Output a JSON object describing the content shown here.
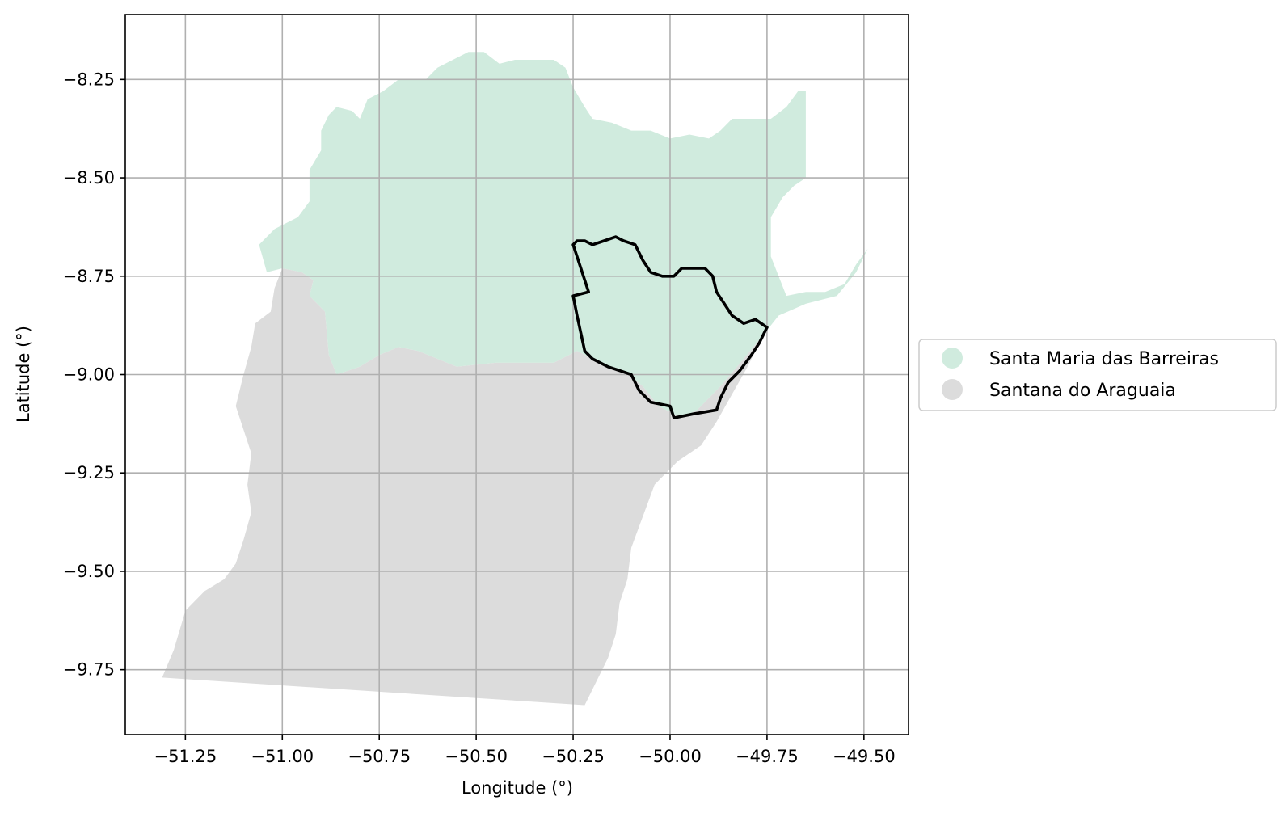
{
  "chart_data": {
    "type": "map",
    "xlabel": "Longitude (°)",
    "ylabel": "Latitude (°)",
    "xlim": [
      -51.405,
      -49.385
    ],
    "ylim": [
      -9.915,
      -8.085
    ],
    "grid": true,
    "x_ticks": [
      -51.25,
      -51.0,
      -50.75,
      -50.5,
      -50.25,
      -50.0,
      -49.75,
      -49.5
    ],
    "x_tick_labels": [
      "−51.25",
      "−51.00",
      "−50.75",
      "−50.50",
      "−50.25",
      "−50.00",
      "−49.75",
      "−49.50"
    ],
    "y_ticks": [
      -8.25,
      -8.5,
      -8.75,
      -9.0,
      -9.25,
      -9.5,
      -9.75
    ],
    "y_tick_labels": [
      "−8.25",
      "−8.50",
      "−8.75",
      "−9.00",
      "−9.25",
      "−9.50",
      "−9.75"
    ],
    "legend_placement": "center-right-outside",
    "series": [
      {
        "name": "Santa Maria das Barreiras",
        "color": "#d0ebde",
        "polygon": [
          [
            -51.06,
            -8.67
          ],
          [
            -51.02,
            -8.63
          ],
          [
            -50.96,
            -8.6
          ],
          [
            -50.93,
            -8.56
          ],
          [
            -50.93,
            -8.48
          ],
          [
            -50.9,
            -8.43
          ],
          [
            -50.9,
            -8.38
          ],
          [
            -50.88,
            -8.34
          ],
          [
            -50.86,
            -8.32
          ],
          [
            -50.82,
            -8.33
          ],
          [
            -50.8,
            -8.35
          ],
          [
            -50.78,
            -8.3
          ],
          [
            -50.74,
            -8.28
          ],
          [
            -50.7,
            -8.25
          ],
          [
            -50.67,
            -8.25
          ],
          [
            -50.63,
            -8.25
          ],
          [
            -50.6,
            -8.22
          ],
          [
            -50.56,
            -8.2
          ],
          [
            -50.52,
            -8.18
          ],
          [
            -50.48,
            -8.18
          ],
          [
            -50.44,
            -8.21
          ],
          [
            -50.4,
            -8.2
          ],
          [
            -50.34,
            -8.2
          ],
          [
            -50.3,
            -8.2
          ],
          [
            -50.27,
            -8.22
          ],
          [
            -50.25,
            -8.27
          ],
          [
            -50.22,
            -8.32
          ],
          [
            -50.2,
            -8.35
          ],
          [
            -50.15,
            -8.36
          ],
          [
            -50.1,
            -8.38
          ],
          [
            -50.05,
            -8.38
          ],
          [
            -50.0,
            -8.4
          ],
          [
            -49.95,
            -8.39
          ],
          [
            -49.9,
            -8.4
          ],
          [
            -49.87,
            -8.38
          ],
          [
            -49.84,
            -8.35
          ],
          [
            -49.79,
            -8.35
          ],
          [
            -49.74,
            -8.35
          ],
          [
            -49.7,
            -8.32
          ],
          [
            -49.67,
            -8.28
          ],
          [
            -49.65,
            -8.28
          ],
          [
            -49.65,
            -8.5
          ],
          [
            -49.68,
            -8.52
          ],
          [
            -49.71,
            -8.55
          ],
          [
            -49.74,
            -8.6
          ],
          [
            -49.74,
            -8.7
          ],
          [
            -49.72,
            -8.75
          ],
          [
            -49.7,
            -8.8
          ],
          [
            -49.65,
            -8.79
          ],
          [
            -49.6,
            -8.79
          ],
          [
            -49.55,
            -8.77
          ],
          [
            -49.52,
            -8.72
          ],
          [
            -49.49,
            -8.68
          ],
          [
            -49.52,
            -8.74
          ],
          [
            -49.57,
            -8.8
          ],
          [
            -49.65,
            -8.82
          ],
          [
            -49.72,
            -8.85
          ],
          [
            -49.76,
            -8.9
          ],
          [
            -49.81,
            -8.96
          ],
          [
            -49.87,
            -9.03
          ],
          [
            -49.93,
            -9.09
          ],
          [
            -49.97,
            -9.11
          ],
          [
            -50.03,
            -9.08
          ],
          [
            -50.07,
            -9.03
          ],
          [
            -50.12,
            -8.99
          ],
          [
            -50.18,
            -8.97
          ],
          [
            -50.24,
            -8.94
          ],
          [
            -50.3,
            -8.97
          ],
          [
            -50.35,
            -8.97
          ],
          [
            -50.45,
            -8.97
          ],
          [
            -50.55,
            -8.98
          ],
          [
            -50.6,
            -8.96
          ],
          [
            -50.65,
            -8.94
          ],
          [
            -50.7,
            -8.93
          ],
          [
            -50.75,
            -8.95
          ],
          [
            -50.8,
            -8.98
          ],
          [
            -50.86,
            -9.0
          ],
          [
            -50.88,
            -8.95
          ],
          [
            -50.89,
            -8.84
          ],
          [
            -50.93,
            -8.8
          ],
          [
            -50.92,
            -8.76
          ],
          [
            -50.95,
            -8.74
          ],
          [
            -51.0,
            -8.73
          ],
          [
            -51.04,
            -8.74
          ]
        ]
      },
      {
        "name": "Santana do Araguaia",
        "color": "#dcdcdc",
        "polygon": [
          [
            -51.0,
            -8.73
          ],
          [
            -50.95,
            -8.74
          ],
          [
            -50.92,
            -8.76
          ],
          [
            -50.93,
            -8.8
          ],
          [
            -50.89,
            -8.84
          ],
          [
            -50.88,
            -8.95
          ],
          [
            -50.86,
            -9.0
          ],
          [
            -50.8,
            -8.98
          ],
          [
            -50.75,
            -8.95
          ],
          [
            -50.7,
            -8.93
          ],
          [
            -50.65,
            -8.94
          ],
          [
            -50.6,
            -8.96
          ],
          [
            -50.55,
            -8.98
          ],
          [
            -50.45,
            -8.97
          ],
          [
            -50.35,
            -8.97
          ],
          [
            -50.3,
            -8.97
          ],
          [
            -50.24,
            -8.94
          ],
          [
            -50.18,
            -8.97
          ],
          [
            -50.12,
            -8.99
          ],
          [
            -50.07,
            -9.03
          ],
          [
            -50.03,
            -9.08
          ],
          [
            -49.97,
            -9.11
          ],
          [
            -49.93,
            -9.09
          ],
          [
            -49.87,
            -9.03
          ],
          [
            -49.81,
            -8.96
          ],
          [
            -49.76,
            -8.9
          ],
          [
            -49.8,
            -8.98
          ],
          [
            -49.84,
            -9.05
          ],
          [
            -49.88,
            -9.12
          ],
          [
            -49.92,
            -9.18
          ],
          [
            -49.98,
            -9.22
          ],
          [
            -50.04,
            -9.28
          ],
          [
            -50.07,
            -9.36
          ],
          [
            -50.1,
            -9.44
          ],
          [
            -50.11,
            -9.52
          ],
          [
            -50.13,
            -9.58
          ],
          [
            -50.14,
            -9.66
          ],
          [
            -50.16,
            -9.72
          ],
          [
            -50.2,
            -9.8
          ],
          [
            -50.22,
            -9.84
          ],
          [
            -51.31,
            -9.77
          ],
          [
            -51.28,
            -9.7
          ],
          [
            -51.25,
            -9.6
          ],
          [
            -51.2,
            -9.55
          ],
          [
            -51.15,
            -9.52
          ],
          [
            -51.12,
            -9.48
          ],
          [
            -51.1,
            -9.42
          ],
          [
            -51.08,
            -9.35
          ],
          [
            -51.09,
            -9.28
          ],
          [
            -51.08,
            -9.2
          ],
          [
            -51.1,
            -9.14
          ],
          [
            -51.12,
            -9.08
          ],
          [
            -51.1,
            -9.0
          ],
          [
            -51.08,
            -8.93
          ],
          [
            -51.07,
            -8.87
          ],
          [
            -51.03,
            -8.84
          ],
          [
            -51.02,
            -8.78
          ]
        ]
      }
    ],
    "highlight_outline": {
      "color": "#000000",
      "polygon": [
        [
          -50.24,
          -8.66
        ],
        [
          -50.22,
          -8.66
        ],
        [
          -50.2,
          -8.67
        ],
        [
          -50.17,
          -8.66
        ],
        [
          -50.14,
          -8.65
        ],
        [
          -50.12,
          -8.66
        ],
        [
          -50.09,
          -8.67
        ],
        [
          -50.07,
          -8.71
        ],
        [
          -50.05,
          -8.74
        ],
        [
          -50.02,
          -8.75
        ],
        [
          -49.99,
          -8.75
        ],
        [
          -49.97,
          -8.73
        ],
        [
          -49.94,
          -8.73
        ],
        [
          -49.91,
          -8.73
        ],
        [
          -49.89,
          -8.75
        ],
        [
          -49.88,
          -8.79
        ],
        [
          -49.86,
          -8.82
        ],
        [
          -49.84,
          -8.85
        ],
        [
          -49.81,
          -8.87
        ],
        [
          -49.78,
          -8.86
        ],
        [
          -49.75,
          -8.88
        ],
        [
          -49.77,
          -8.92
        ],
        [
          -49.79,
          -8.95
        ],
        [
          -49.82,
          -8.99
        ],
        [
          -49.85,
          -9.02
        ],
        [
          -49.87,
          -9.06
        ],
        [
          -49.88,
          -9.09
        ],
        [
          -49.94,
          -9.1
        ],
        [
          -49.99,
          -9.11
        ],
        [
          -50.0,
          -9.08
        ],
        [
          -50.05,
          -9.07
        ],
        [
          -50.08,
          -9.04
        ],
        [
          -50.1,
          -9.0
        ],
        [
          -50.13,
          -8.99
        ],
        [
          -50.16,
          -8.98
        ],
        [
          -50.2,
          -8.96
        ],
        [
          -50.22,
          -8.94
        ],
        [
          -50.24,
          -8.85
        ],
        [
          -50.25,
          -8.8
        ],
        [
          -50.21,
          -8.79
        ],
        [
          -50.25,
          -8.67
        ]
      ]
    }
  }
}
